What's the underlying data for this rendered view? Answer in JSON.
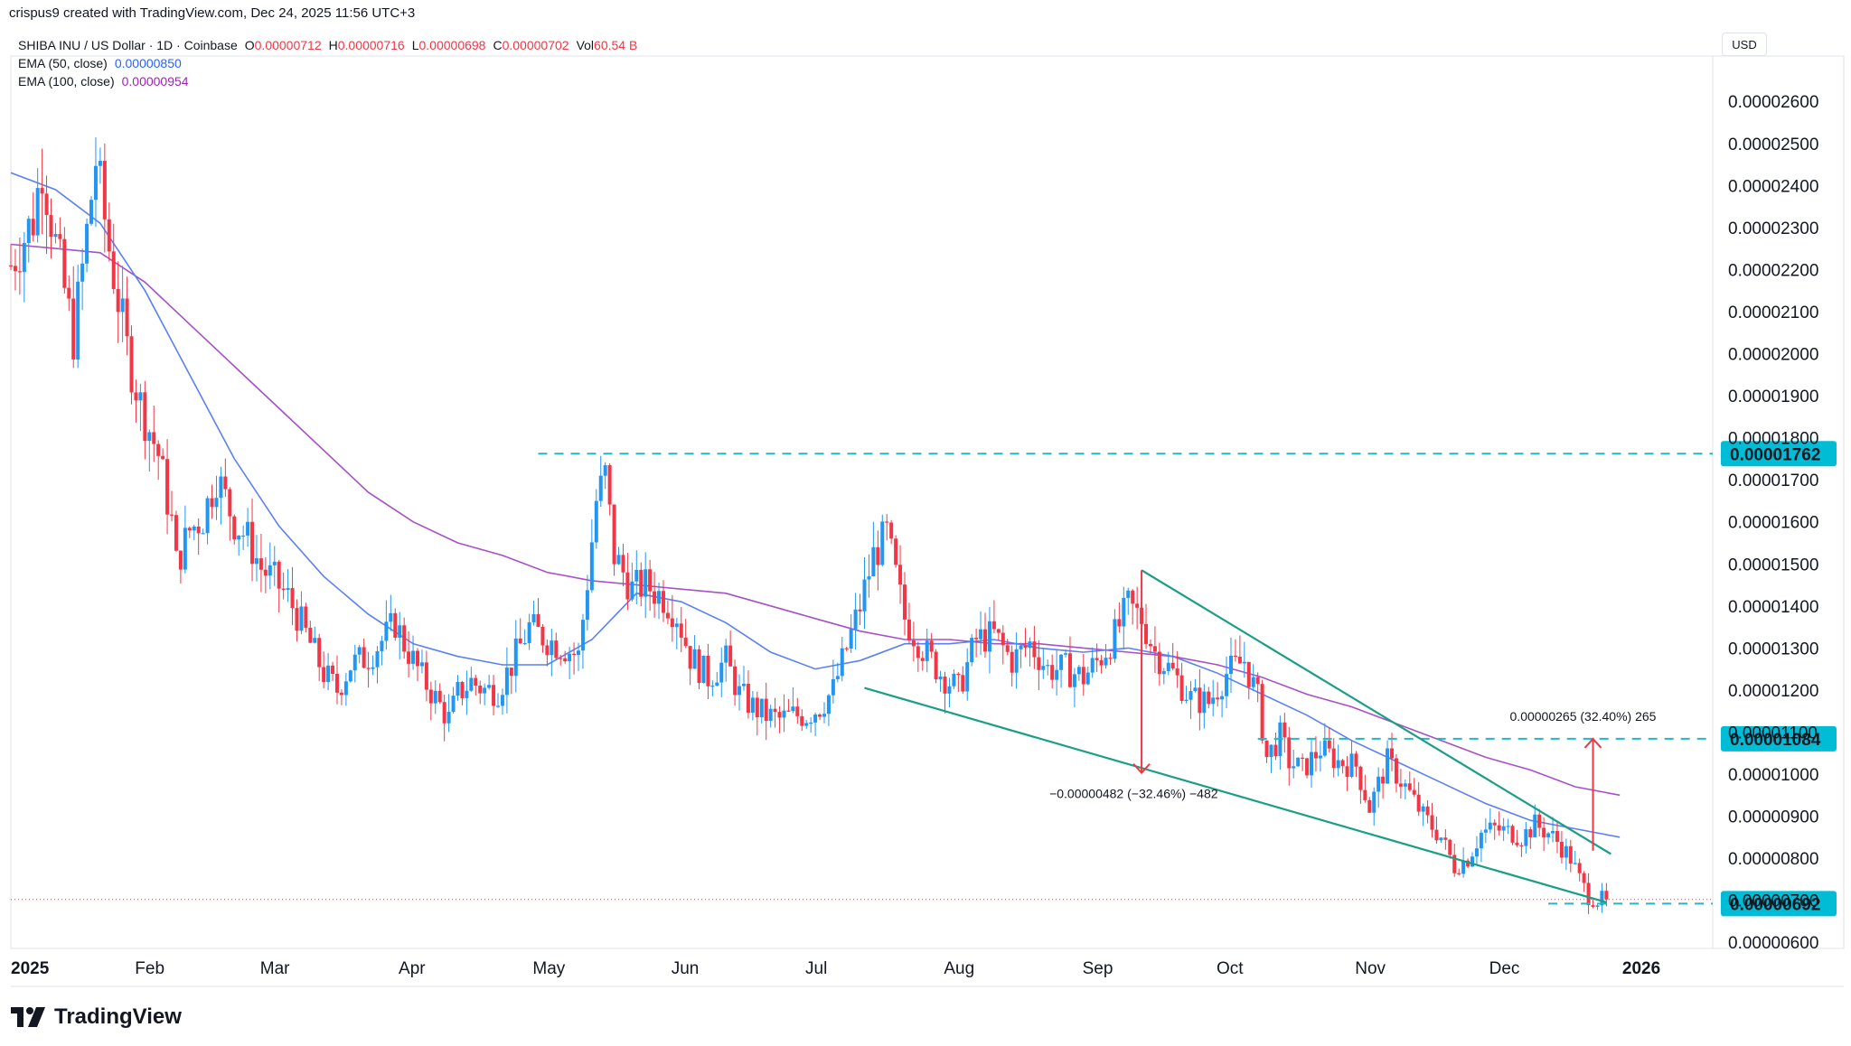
{
  "header": {
    "creator_line": "crispus9 created with TradingView.com, Dec 24, 2025 11:56 UTC+3",
    "symbol": "SHIBA INU / US Dollar · 1D · Coinbase",
    "o_label": "O",
    "o_value": "0.00000712",
    "h_label": "H",
    "h_value": "0.00000716",
    "l_label": "L",
    "l_value": "0.00000698",
    "c_label": "C",
    "c_value": "0.00000702",
    "vol_label": "Vol",
    "vol_value": "60.54 B",
    "ema50_label": "EMA (50, close)",
    "ema50_value": "0.00000850",
    "ema100_label": "EMA (100, close)",
    "ema100_value": "0.00000954"
  },
  "currency": "USD",
  "logo_text": "TradingView",
  "colors": {
    "up": "#2196f3",
    "down": "#f23645",
    "ema50": "#5b7ff5",
    "ema100": "#a750c8",
    "trend": "#1a9e86",
    "level": "#1eb8cc",
    "measure": "#f23645",
    "label_bg": "#00bcd4"
  },
  "chart_data": {
    "type": "candlestick",
    "title": "SHIBA INU / US Dollar · 1D · Coinbase",
    "y_axis": {
      "ticks": [
        "0.00000600",
        "0.00000700",
        "0.00000800",
        "0.00000900",
        "0.00001000",
        "0.00001100",
        "0.00001200",
        "0.00001300",
        "0.00001400",
        "0.00001500",
        "0.00001600",
        "0.00001700",
        "0.00001800",
        "0.00001900",
        "0.00002000",
        "0.00002100",
        "0.00002200",
        "0.00002300",
        "0.00002400",
        "0.00002500",
        "0.00002600"
      ],
      "tick_values": [
        6.0,
        7.0,
        8.0,
        9.0,
        10.0,
        11.0,
        12.0,
        13.0,
        14.0,
        15.0,
        16.0,
        17.0,
        18.0,
        19.0,
        20.0,
        21.0,
        22.0,
        23.0,
        24.0,
        25.0,
        26.0
      ],
      "range": [
        5.45,
        27.0
      ],
      "unit_note": "values in chart_data are price × 1e-6 USD"
    },
    "x_axis": {
      "labels": [
        "2025",
        "Feb",
        "Mar",
        "Apr",
        "May",
        "Jun",
        "Jul",
        "Aug",
        "Sep",
        "Oct",
        "Nov",
        "Dec",
        "2026"
      ],
      "label_days": [
        0,
        31,
        59,
        90,
        120,
        151,
        181,
        212,
        243,
        273,
        304,
        334,
        365
      ],
      "range_days": [
        0,
        395
      ]
    },
    "price_path": [
      [
        0,
        22.1
      ],
      [
        5,
        23.2
      ],
      [
        7,
        24.5
      ],
      [
        10,
        22.6
      ],
      [
        14,
        20.4
      ],
      [
        16,
        22.0
      ],
      [
        19,
        24.6
      ],
      [
        22,
        22.5
      ],
      [
        26,
        20.1
      ],
      [
        29,
        18.8
      ],
      [
        33,
        17.6
      ],
      [
        36,
        16.0
      ],
      [
        37,
        15.0
      ],
      [
        40,
        15.8
      ],
      [
        43,
        16.1
      ],
      [
        46,
        17.1
      ],
      [
        50,
        16.0
      ],
      [
        53,
        15.6
      ],
      [
        56,
        14.9
      ],
      [
        59,
        14.6
      ],
      [
        62,
        14.2
      ],
      [
        64,
        13.8
      ],
      [
        67,
        13.1
      ],
      [
        70,
        12.4
      ],
      [
        73,
        12.0
      ],
      [
        76,
        12.6
      ],
      [
        80,
        12.8
      ],
      [
        84,
        13.3
      ],
      [
        86,
        13.6
      ],
      [
        88,
        13.1
      ],
      [
        92,
        12.3
      ],
      [
        95,
        11.8
      ],
      [
        98,
        11.3
      ],
      [
        100,
        11.9
      ],
      [
        103,
        12.2
      ],
      [
        106,
        12.0
      ],
      [
        109,
        12.0
      ],
      [
        112,
        12.6
      ],
      [
        116,
        13.5
      ],
      [
        120,
        13.2
      ],
      [
        124,
        13.0
      ],
      [
        127,
        12.8
      ],
      [
        129,
        14.6
      ],
      [
        131,
        16.5
      ],
      [
        133,
        17.1
      ],
      [
        135,
        15.2
      ],
      [
        139,
        14.4
      ],
      [
        142,
        14.5
      ],
      [
        146,
        14.2
      ],
      [
        149,
        13.8
      ],
      [
        152,
        12.8
      ],
      [
        156,
        12.3
      ],
      [
        160,
        12.7
      ],
      [
        163,
        11.9
      ],
      [
        166,
        11.6
      ],
      [
        169,
        11.4
      ],
      [
        172,
        11.3
      ],
      [
        175,
        11.4
      ],
      [
        178,
        11.4
      ],
      [
        181,
        11.6
      ],
      [
        184,
        12.0
      ],
      [
        187,
        13.0
      ],
      [
        190,
        14.0
      ],
      [
        193,
        15.2
      ],
      [
        196,
        15.7
      ],
      [
        200,
        13.7
      ],
      [
        204,
        13.0
      ],
      [
        208,
        12.4
      ],
      [
        212,
        12.0
      ],
      [
        216,
        13.2
      ],
      [
        220,
        13.3
      ],
      [
        224,
        12.7
      ],
      [
        228,
        13.1
      ],
      [
        232,
        12.5
      ],
      [
        236,
        12.5
      ],
      [
        240,
        12.3
      ],
      [
        244,
        12.8
      ],
      [
        247,
        13.3
      ],
      [
        250,
        14.0
      ],
      [
        253,
        13.7
      ],
      [
        256,
        12.9
      ],
      [
        260,
        12.4
      ],
      [
        264,
        11.8
      ],
      [
        268,
        11.7
      ],
      [
        272,
        12.4
      ],
      [
        276,
        12.7
      ],
      [
        279,
        11.8
      ],
      [
        281,
        10.4
      ],
      [
        284,
        10.9
      ],
      [
        286,
        10.3
      ],
      [
        289,
        10.1
      ],
      [
        293,
        10.6
      ],
      [
        297,
        10.3
      ],
      [
        301,
        10.2
      ],
      [
        304,
        9.2
      ],
      [
        308,
        10.3
      ],
      [
        312,
        9.7
      ],
      [
        316,
        9.0
      ],
      [
        320,
        8.5
      ],
      [
        323,
        7.8
      ],
      [
        326,
        8.0
      ],
      [
        329,
        8.6
      ],
      [
        332,
        8.7
      ],
      [
        336,
        8.6
      ],
      [
        338,
        8.5
      ],
      [
        341,
        8.8
      ],
      [
        344,
        8.6
      ],
      [
        346,
        8.4
      ],
      [
        349,
        8.0
      ],
      [
        351,
        7.5
      ],
      [
        353,
        7.1
      ],
      [
        355,
        7.0
      ],
      [
        357,
        7.02
      ]
    ],
    "ema50": [
      [
        0,
        24.3
      ],
      [
        10,
        23.9
      ],
      [
        20,
        23.1
      ],
      [
        30,
        21.5
      ],
      [
        40,
        19.5
      ],
      [
        50,
        17.5
      ],
      [
        60,
        15.9
      ],
      [
        70,
        14.7
      ],
      [
        80,
        13.8
      ],
      [
        90,
        13.1
      ],
      [
        100,
        12.8
      ],
      [
        110,
        12.6
      ],
      [
        120,
        12.6
      ],
      [
        130,
        13.2
      ],
      [
        140,
        14.3
      ],
      [
        150,
        14.1
      ],
      [
        160,
        13.6
      ],
      [
        170,
        12.9
      ],
      [
        180,
        12.5
      ],
      [
        190,
        12.7
      ],
      [
        200,
        13.1
      ],
      [
        210,
        13.1
      ],
      [
        220,
        13.2
      ],
      [
        230,
        13.0
      ],
      [
        240,
        12.9
      ],
      [
        250,
        13.0
      ],
      [
        260,
        12.8
      ],
      [
        270,
        12.4
      ],
      [
        280,
        11.9
      ],
      [
        290,
        11.4
      ],
      [
        300,
        10.8
      ],
      [
        310,
        10.3
      ],
      [
        320,
        9.8
      ],
      [
        330,
        9.3
      ],
      [
        340,
        8.9
      ],
      [
        350,
        8.7
      ],
      [
        360,
        8.5
      ]
    ],
    "ema100": [
      [
        0,
        22.6
      ],
      [
        10,
        22.5
      ],
      [
        20,
        22.4
      ],
      [
        30,
        21.7
      ],
      [
        40,
        20.7
      ],
      [
        50,
        19.7
      ],
      [
        60,
        18.7
      ],
      [
        70,
        17.7
      ],
      [
        80,
        16.7
      ],
      [
        90,
        16.0
      ],
      [
        100,
        15.5
      ],
      [
        110,
        15.2
      ],
      [
        120,
        14.8
      ],
      [
        130,
        14.6
      ],
      [
        140,
        14.5
      ],
      [
        150,
        14.4
      ],
      [
        160,
        14.3
      ],
      [
        170,
        14.0
      ],
      [
        180,
        13.7
      ],
      [
        190,
        13.4
      ],
      [
        200,
        13.2
      ],
      [
        210,
        13.2
      ],
      [
        220,
        13.1
      ],
      [
        230,
        13.1
      ],
      [
        240,
        13.0
      ],
      [
        250,
        12.9
      ],
      [
        260,
        12.8
      ],
      [
        270,
        12.6
      ],
      [
        280,
        12.3
      ],
      [
        290,
        11.9
      ],
      [
        300,
        11.6
      ],
      [
        310,
        11.2
      ],
      [
        320,
        10.8
      ],
      [
        330,
        10.4
      ],
      [
        340,
        10.1
      ],
      [
        350,
        9.7
      ],
      [
        360,
        9.5
      ]
    ],
    "wedge_upper": [
      [
        253,
        14.85
      ],
      [
        358,
        8.1
      ]
    ],
    "wedge_lower": [
      [
        191,
        12.05
      ],
      [
        357,
        6.95
      ]
    ],
    "resistance_1762": {
      "value": 17.62,
      "from_day": 118,
      "label": "0.00001762"
    },
    "breakout_1084": {
      "value": 10.84,
      "from_day": 279,
      "label": "0.00001084"
    },
    "support_692": {
      "value": 6.92,
      "from_day": 344,
      "label": "0.00000692"
    },
    "last_price_value": 7.02,
    "measure_down": {
      "day": 253,
      "from": 14.85,
      "to": 10.03,
      "label": "−0.00000482 (−32.46%) −482"
    },
    "measure_up": {
      "day": 354,
      "from": 8.18,
      "to": 10.84,
      "label": "0.00000265 (32.40%) 265"
    }
  }
}
